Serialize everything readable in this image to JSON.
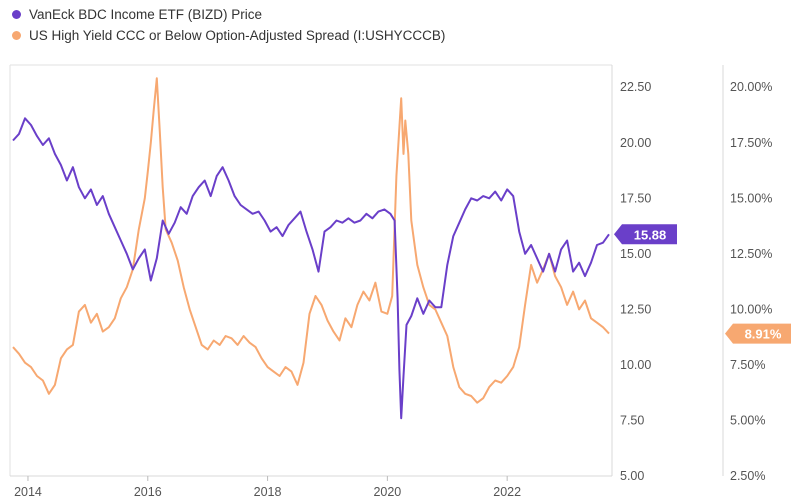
{
  "chart_data": {
    "type": "line",
    "title": "",
    "x_ticks": [
      "2014",
      "2016",
      "2018",
      "2020",
      "2022"
    ],
    "x_range": [
      2013.7,
      2023.75
    ],
    "left_axis": {
      "ticks": [
        "22.50",
        "20.00",
        "17.50",
        "15.00",
        "12.50",
        "10.00",
        "7.50",
        "5.00"
      ],
      "range": [
        5.0,
        23.5
      ]
    },
    "right_axis": {
      "ticks": [
        "20.00%",
        "17.50%",
        "15.00%",
        "12.50%",
        "10.00%",
        "7.50%",
        "5.00%",
        "2.50%"
      ],
      "range": [
        2.5,
        21.0
      ]
    },
    "series": [
      {
        "name": "VanEck BDC Income ETF (BIZD) Price",
        "axis": "left",
        "color": "#6a3fc9",
        "last_label": "15.88",
        "x": [
          2013.75,
          2013.85,
          2013.95,
          2014.05,
          2014.15,
          2014.25,
          2014.35,
          2014.45,
          2014.55,
          2014.65,
          2014.75,
          2014.85,
          2014.95,
          2015.05,
          2015.15,
          2015.25,
          2015.35,
          2015.45,
          2015.55,
          2015.65,
          2015.75,
          2015.85,
          2015.95,
          2016.05,
          2016.15,
          2016.25,
          2016.35,
          2016.45,
          2016.55,
          2016.65,
          2016.75,
          2016.85,
          2016.95,
          2017.05,
          2017.15,
          2017.25,
          2017.35,
          2017.45,
          2017.55,
          2017.65,
          2017.75,
          2017.85,
          2017.95,
          2018.05,
          2018.15,
          2018.25,
          2018.35,
          2018.45,
          2018.55,
          2018.65,
          2018.75,
          2018.85,
          2018.95,
          2019.05,
          2019.15,
          2019.25,
          2019.35,
          2019.45,
          2019.55,
          2019.65,
          2019.75,
          2019.85,
          2019.95,
          2020.05,
          2020.12,
          2020.17,
          2020.2,
          2020.23,
          2020.27,
          2020.32,
          2020.4,
          2020.5,
          2020.6,
          2020.7,
          2020.8,
          2020.9,
          2021.0,
          2021.1,
          2021.2,
          2021.3,
          2021.4,
          2021.5,
          2021.6,
          2021.7,
          2021.8,
          2021.9,
          2022.0,
          2022.1,
          2022.2,
          2022.3,
          2022.4,
          2022.5,
          2022.6,
          2022.7,
          2022.8,
          2022.9,
          2023.0,
          2023.1,
          2023.2,
          2023.3,
          2023.4,
          2023.5,
          2023.6,
          2023.7
        ],
        "values": [
          20.1,
          20.4,
          21.1,
          20.8,
          20.3,
          19.9,
          20.2,
          19.5,
          19.0,
          18.3,
          18.9,
          18.0,
          17.5,
          17.9,
          17.2,
          17.6,
          16.8,
          16.2,
          15.6,
          15.0,
          14.3,
          14.8,
          15.2,
          13.8,
          14.8,
          16.5,
          15.9,
          16.4,
          17.1,
          16.8,
          17.6,
          18.0,
          18.3,
          17.6,
          18.5,
          18.9,
          18.3,
          17.6,
          17.2,
          17.0,
          16.8,
          16.9,
          16.5,
          16.0,
          16.2,
          15.8,
          16.3,
          16.6,
          16.9,
          16.0,
          15.2,
          14.2,
          16.0,
          16.2,
          16.5,
          16.4,
          16.6,
          16.4,
          16.5,
          16.8,
          16.6,
          16.9,
          17.0,
          16.8,
          16.5,
          13.0,
          9.8,
          7.6,
          9.5,
          11.8,
          12.2,
          13.0,
          12.3,
          12.9,
          12.6,
          12.6,
          14.5,
          15.8,
          16.4,
          17.0,
          17.5,
          17.4,
          17.6,
          17.5,
          17.8,
          17.4,
          17.9,
          17.6,
          16.0,
          15.0,
          15.4,
          14.8,
          14.2,
          15.0,
          14.2,
          15.2,
          15.6,
          14.2,
          14.6,
          14.0,
          14.6,
          15.4,
          15.5,
          15.88
        ]
      },
      {
        "name": "US High Yield CCC or Below Option-Adjusted Spread (I:USHYCCCB)",
        "axis": "right",
        "color": "#f7a871",
        "last_label": "8.91%",
        "x": [
          2013.75,
          2013.85,
          2013.95,
          2014.05,
          2014.15,
          2014.25,
          2014.35,
          2014.45,
          2014.55,
          2014.65,
          2014.75,
          2014.85,
          2014.95,
          2015.05,
          2015.15,
          2015.25,
          2015.35,
          2015.45,
          2015.55,
          2015.65,
          2015.75,
          2015.85,
          2015.95,
          2016.0,
          2016.05,
          2016.1,
          2016.15,
          2016.2,
          2016.25,
          2016.3,
          2016.4,
          2016.5,
          2016.6,
          2016.7,
          2016.8,
          2016.9,
          2017.0,
          2017.1,
          2017.2,
          2017.3,
          2017.4,
          2017.5,
          2017.6,
          2017.7,
          2017.8,
          2017.9,
          2018.0,
          2018.1,
          2018.2,
          2018.3,
          2018.4,
          2018.5,
          2018.6,
          2018.7,
          2018.8,
          2018.9,
          2019.0,
          2019.1,
          2019.2,
          2019.3,
          2019.4,
          2019.5,
          2019.6,
          2019.7,
          2019.8,
          2019.9,
          2020.0,
          2020.08,
          2020.15,
          2020.2,
          2020.23,
          2020.27,
          2020.3,
          2020.35,
          2020.4,
          2020.5,
          2020.6,
          2020.7,
          2020.8,
          2020.9,
          2021.0,
          2021.1,
          2021.2,
          2021.3,
          2021.4,
          2021.5,
          2021.6,
          2021.7,
          2021.8,
          2021.9,
          2022.0,
          2022.1,
          2022.2,
          2022.3,
          2022.4,
          2022.5,
          2022.6,
          2022.7,
          2022.8,
          2022.9,
          2023.0,
          2023.1,
          2023.2,
          2023.3,
          2023.4,
          2023.5,
          2023.6,
          2023.7
        ],
        "values": [
          8.3,
          8.0,
          7.6,
          7.4,
          7.0,
          6.8,
          6.2,
          6.6,
          7.8,
          8.2,
          8.4,
          9.9,
          10.2,
          9.4,
          9.8,
          9.0,
          9.2,
          9.6,
          10.5,
          11.0,
          11.8,
          13.6,
          15.0,
          16.2,
          17.5,
          19.0,
          20.4,
          18.0,
          15.5,
          13.6,
          13.0,
          12.2,
          11.0,
          10.0,
          9.2,
          8.4,
          8.2,
          8.6,
          8.4,
          8.8,
          8.7,
          8.4,
          8.8,
          8.5,
          8.3,
          7.8,
          7.4,
          7.2,
          7.0,
          7.4,
          7.2,
          6.6,
          7.6,
          9.8,
          10.6,
          10.2,
          9.5,
          9.0,
          8.6,
          9.6,
          9.2,
          10.2,
          10.8,
          10.4,
          11.2,
          9.9,
          9.8,
          10.6,
          16.0,
          18.2,
          19.5,
          17.0,
          18.5,
          17.0,
          14.0,
          12.0,
          11.0,
          10.2,
          10.0,
          9.4,
          8.8,
          7.4,
          6.5,
          6.2,
          6.1,
          5.8,
          6.0,
          6.5,
          6.8,
          6.7,
          7.0,
          7.4,
          8.3,
          10.2,
          12.0,
          11.2,
          11.8,
          12.5,
          11.5,
          11.0,
          10.2,
          10.8,
          10.0,
          10.4,
          9.6,
          9.4,
          9.2,
          8.91
        ]
      }
    ]
  }
}
